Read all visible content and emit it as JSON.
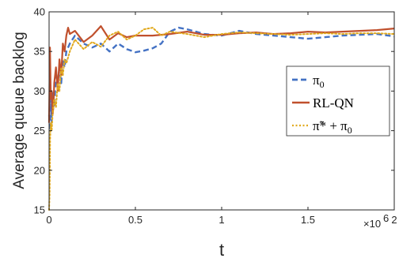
{
  "chart_data": {
    "type": "line",
    "xlabel": "t",
    "ylabel": "Average queue backlog",
    "x_multiplier_label": "×10",
    "x_multiplier_exp": "6",
    "xlim": [
      0,
      2000000
    ],
    "ylim": [
      15,
      40
    ],
    "x_ticks": [
      0,
      500000,
      1000000,
      1500000,
      2000000
    ],
    "x_tick_labels": [
      "0",
      "0.5",
      "1",
      "1.5",
      "2"
    ],
    "y_ticks": [
      15,
      20,
      25,
      30,
      35,
      40
    ],
    "y_tick_labels": [
      "15",
      "20",
      "25",
      "30",
      "35",
      "40"
    ],
    "legend_position": "right",
    "series": [
      {
        "name": "π0",
        "legend_main": "π",
        "legend_sub": "0",
        "color": "#4472c4",
        "style": "dashed",
        "x": [
          0,
          5000,
          10000,
          15000,
          20000,
          30000,
          40000,
          50000,
          60000,
          70000,
          80000,
          90000,
          100000,
          120000,
          150000,
          200000,
          250000,
          300000,
          350000,
          400000,
          450000,
          500000,
          550000,
          600000,
          650000,
          700000,
          750000,
          800000,
          900000,
          1000000,
          1100000,
          1200000,
          1300000,
          1400000,
          1500000,
          1600000,
          1700000,
          1800000,
          1900000,
          2000000
        ],
        "y": [
          27,
          25,
          29,
          26,
          30,
          28,
          32,
          31,
          33,
          31,
          34,
          33,
          35,
          36,
          37,
          36,
          35.5,
          36,
          35,
          36,
          35.3,
          34.9,
          35.1,
          35.4,
          36,
          37.5,
          38,
          37.8,
          37.2,
          37,
          37.6,
          37.2,
          37,
          36.8,
          36.6,
          36.8,
          37,
          37.1,
          37.2,
          36.9
        ]
      },
      {
        "name": "RL-QN",
        "legend_main": "RL-QN",
        "legend_sub": "",
        "color": "#c0502d",
        "style": "solid",
        "x": [
          0,
          5000,
          10000,
          15000,
          20000,
          25000,
          30000,
          40000,
          50000,
          60000,
          70000,
          80000,
          90000,
          100000,
          110000,
          120000,
          150000,
          200000,
          250000,
          300000,
          350000,
          400000,
          450000,
          500000,
          600000,
          700000,
          800000,
          900000,
          1000000,
          1100000,
          1200000,
          1300000,
          1400000,
          1500000,
          1600000,
          1700000,
          1800000,
          1900000,
          2000000
        ],
        "y": [
          26,
          35.5,
          29,
          30,
          27,
          28,
          31,
          33,
          30,
          34,
          32,
          36,
          35,
          37,
          38,
          37.2,
          37.6,
          36.2,
          37,
          38.2,
          36.5,
          37.3,
          36.8,
          37,
          37,
          37.2,
          37.5,
          37.1,
          37.1,
          37.3,
          37.4,
          37.2,
          37.3,
          37.5,
          37.4,
          37.5,
          37.6,
          37.7,
          37.9
        ]
      },
      {
        "name": "π̃* + π0",
        "legend_main": "π̃* + π",
        "legend_sub": "0",
        "color": "#e1a91e",
        "style": "dotted",
        "x": [
          0,
          3000,
          6000,
          10000,
          15000,
          20000,
          30000,
          40000,
          50000,
          60000,
          70000,
          80000,
          90000,
          100000,
          120000,
          150000,
          200000,
          250000,
          300000,
          350000,
          400000,
          450000,
          500000,
          550000,
          600000,
          650000,
          700000,
          800000,
          900000,
          1000000,
          1100000,
          1200000,
          1300000,
          1400000,
          1500000,
          1600000,
          1700000,
          1800000,
          1900000,
          2000000
        ],
        "y": [
          15,
          17,
          24,
          26,
          25,
          27,
          29,
          28,
          31,
          30,
          33,
          32,
          34,
          33.5,
          35,
          36.5,
          35.3,
          36.2,
          35.6,
          37,
          37.5,
          36.5,
          37,
          37.8,
          38,
          37,
          37.5,
          37.2,
          36.8,
          37.2,
          37.4,
          37.3,
          37.2,
          37.1,
          37.2,
          37.3,
          37.2,
          37.3,
          37.3,
          37.2
        ]
      }
    ]
  }
}
